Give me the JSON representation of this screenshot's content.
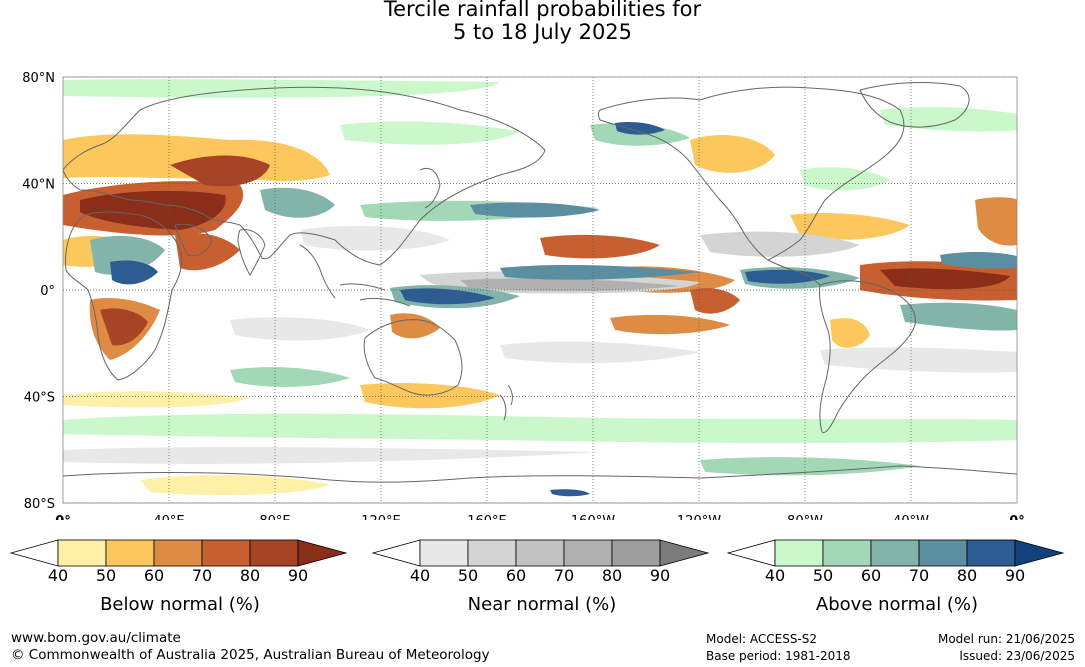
{
  "header": {
    "title_line1": "Tercile rainfall probabilities for",
    "title_line2": "5 to 18 July 2025"
  },
  "map": {
    "lat_labels": [
      "80°N",
      "40°N",
      "0°",
      "40°S",
      "80°S"
    ],
    "lon_labels": [
      "0°",
      "40°E",
      "80°E",
      "120°E",
      "160°E",
      "160°W",
      "120°W",
      "80°W",
      "40°W",
      "0°"
    ],
    "ocean_color": "#ffffff",
    "grid": true
  },
  "legends": [
    {
      "title": "Below normal (%)",
      "ticks": [
        "40",
        "50",
        "60",
        "70",
        "80",
        "90"
      ],
      "colors": [
        "#fff0a8",
        "#fcc75c",
        "#de8c44",
        "#c85f30",
        "#a84426",
        "#8a2e1a"
      ]
    },
    {
      "title": "Near normal (%)",
      "ticks": [
        "40",
        "50",
        "60",
        "70",
        "80",
        "90"
      ],
      "colors": [
        "#e8e8e8",
        "#d4d4d4",
        "#c2c2c2",
        "#b0b0b0",
        "#9e9e9e",
        "#7c7c7c"
      ]
    },
    {
      "title": "Above normal (%)",
      "ticks": [
        "40",
        "50",
        "60",
        "70",
        "80",
        "90"
      ],
      "colors": [
        "#caf8ca",
        "#a2d8b6",
        "#82b4ac",
        "#5a8ea0",
        "#2c5c92",
        "#12407a"
      ]
    }
  ],
  "footer": {
    "url": "www.bom.gov.au/climate",
    "copyright": "© Commonwealth of Australia 2025, Australian Bureau of Meteorology",
    "model": "Model: ACCESS-S2",
    "base_period": "Base period: 1981-2018",
    "model_run": "Model run: 21/06/2025",
    "issued": "Issued: 23/06/2025"
  }
}
